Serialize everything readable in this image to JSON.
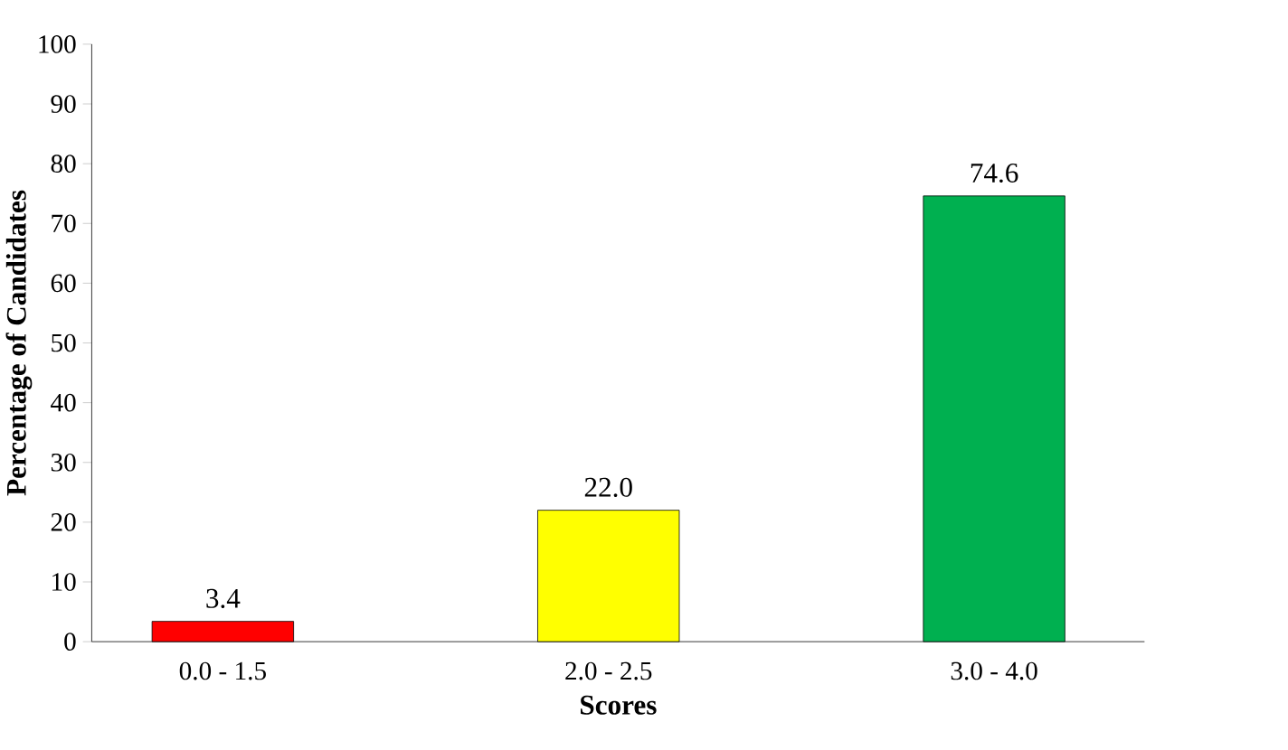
{
  "chart_data": {
    "type": "bar",
    "xlabel": "Scores",
    "ylabel": "Percentage of  Candidates",
    "categories": [
      "0.0 - 1.5",
      "2.0 - 2.5",
      "3.0 - 4.0"
    ],
    "values": [
      3.4,
      22.0,
      74.6
    ],
    "colors": [
      "#ff0000",
      "#ffff00",
      "#00b050"
    ],
    "value_labels": [
      "3.4",
      "22.0",
      "74.6"
    ],
    "ylim": [
      0,
      100
    ],
    "yticks": [
      0,
      10,
      20,
      30,
      40,
      50,
      60,
      70,
      80,
      90,
      100
    ],
    "grid": false
  }
}
